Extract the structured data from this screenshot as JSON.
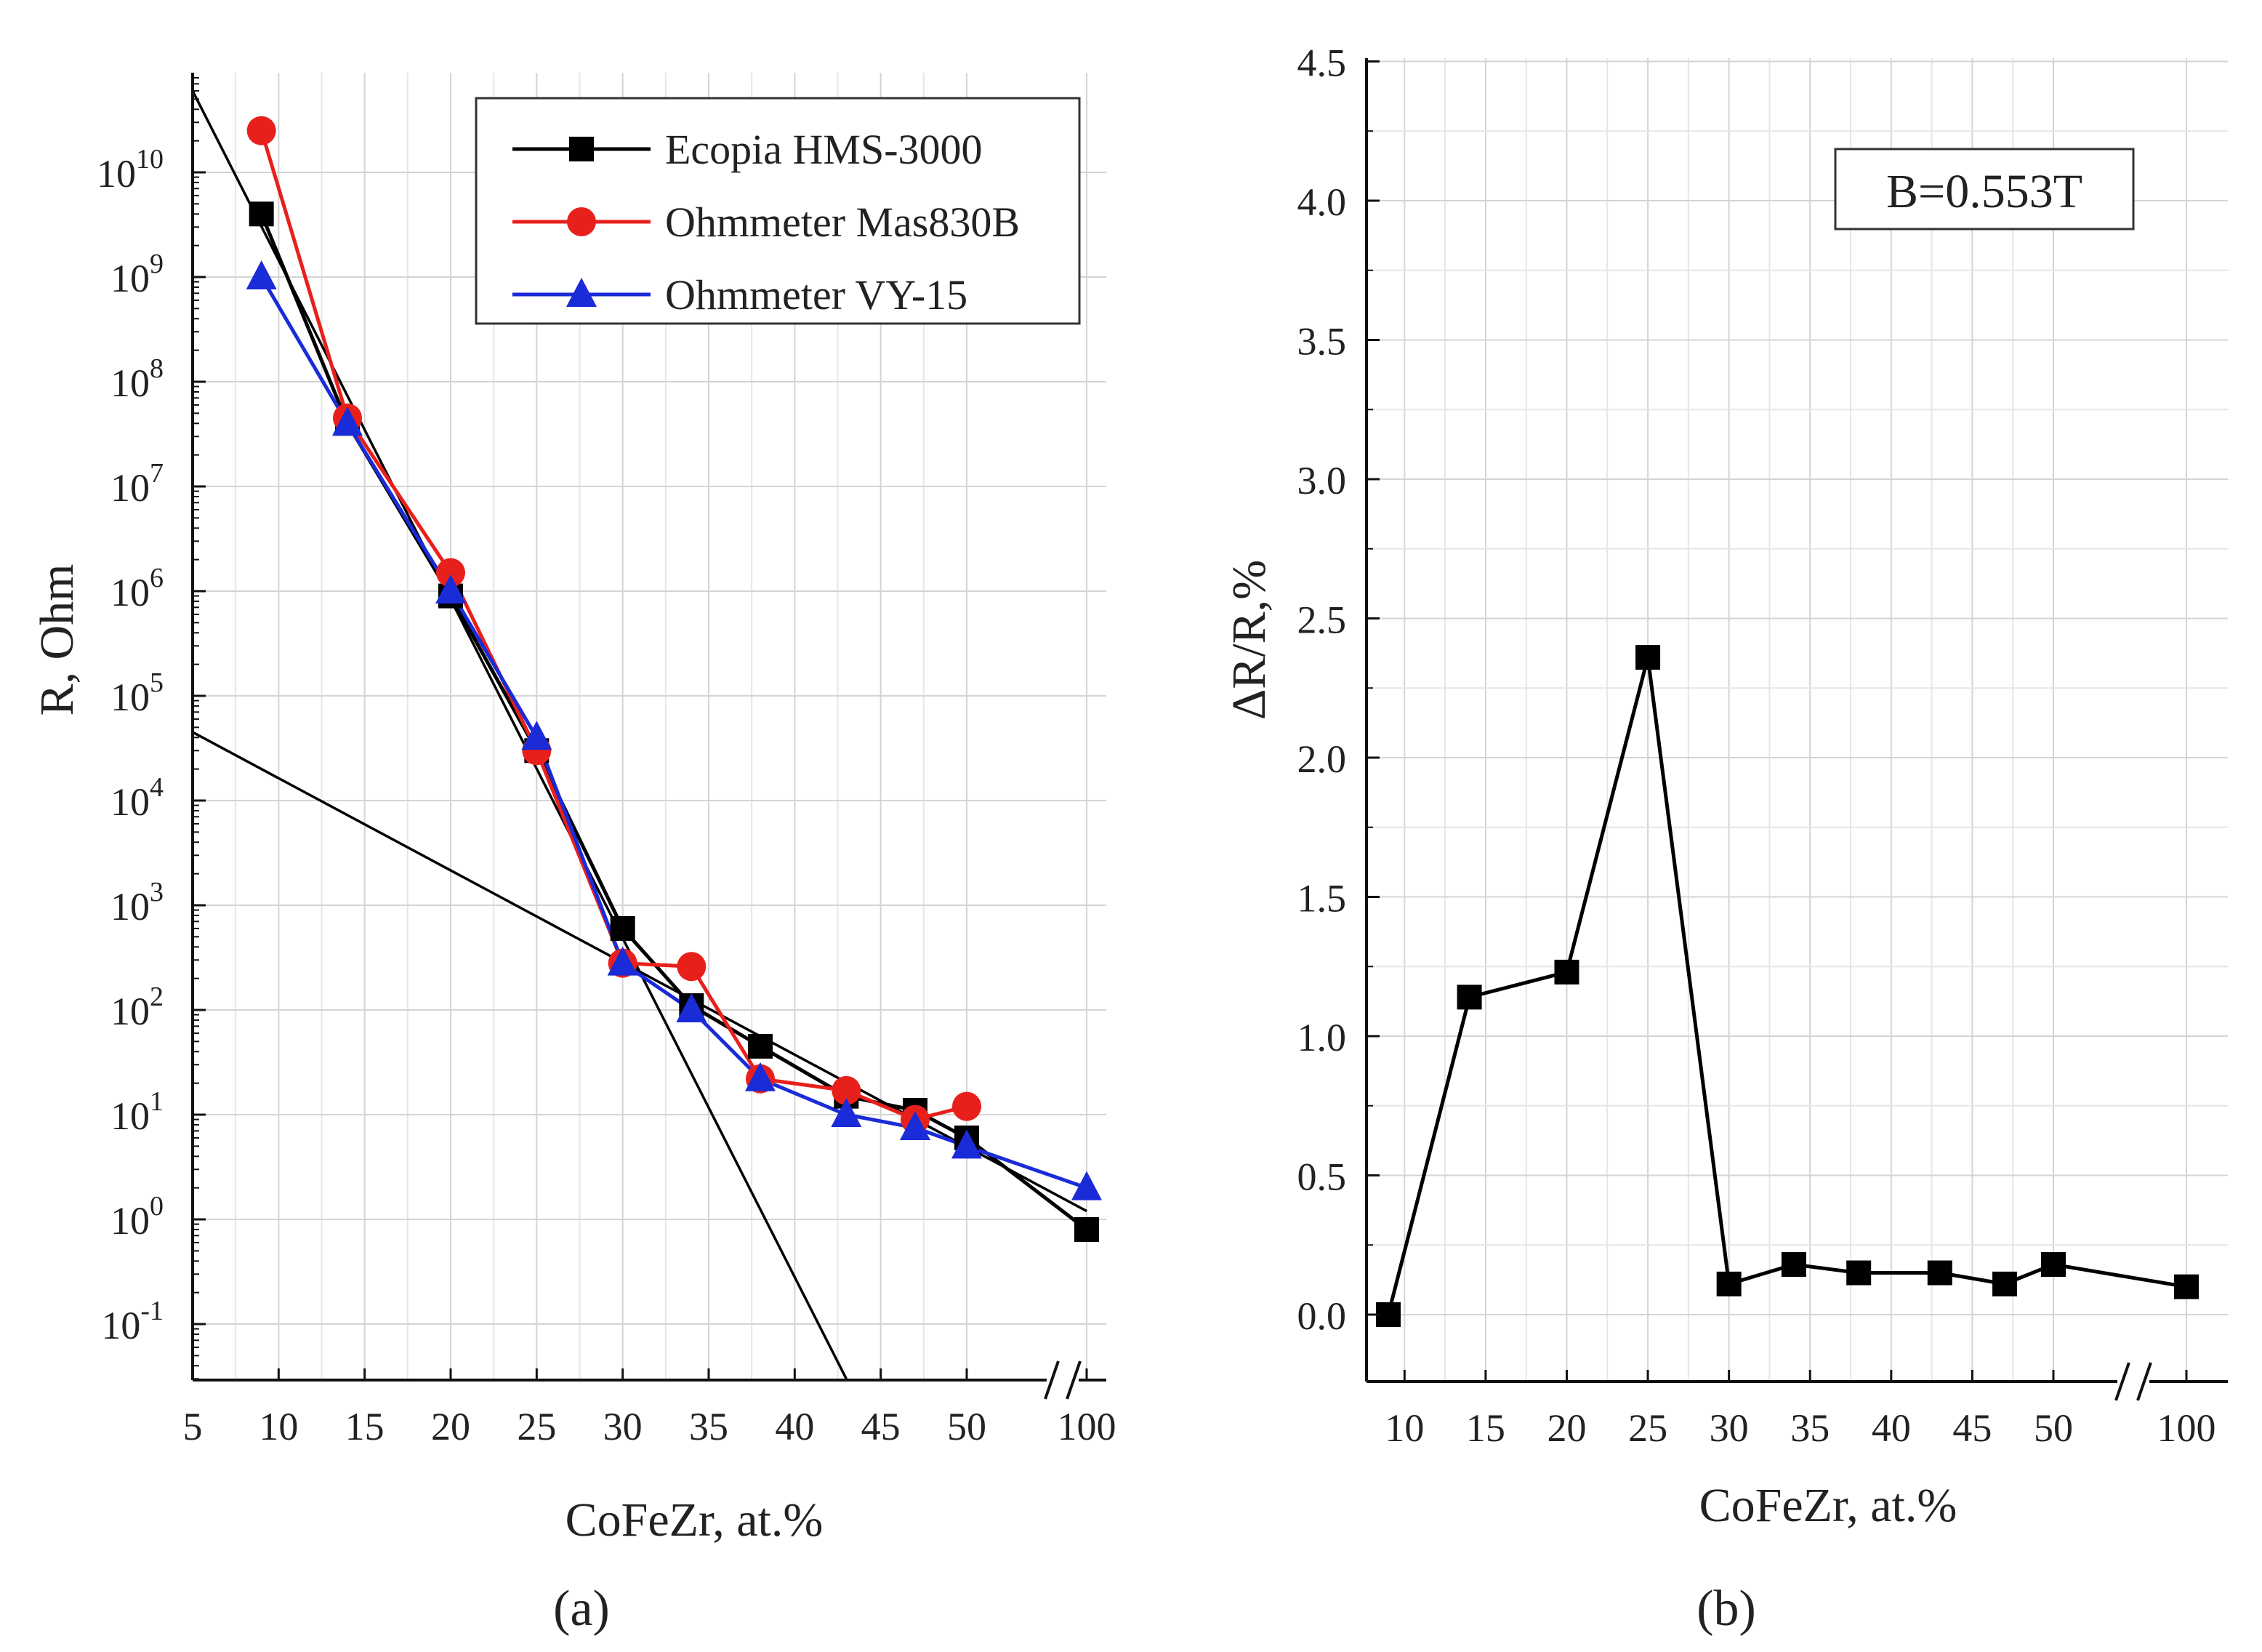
{
  "chart_data": [
    {
      "panel": "(a)",
      "type": "line",
      "xlabel": "CoFeZr, at.%",
      "ylabel": "R, Ohm",
      "yscale": "log",
      "ylim": [
        0.03,
        100000000000.0
      ],
      "x_ticks": [
        "5",
        "10",
        "15",
        "20",
        "25",
        "30",
        "35",
        "40",
        "45",
        "50",
        "100"
      ],
      "y_ticks": [
        {
          "base": "10",
          "exp": "10",
          "value": 10000000000.0
        },
        {
          "base": "10",
          "exp": "9",
          "value": 1000000000.0
        },
        {
          "base": "10",
          "exp": "8",
          "value": 100000000.0
        },
        {
          "base": "10",
          "exp": "7",
          "value": 10000000.0
        },
        {
          "base": "10",
          "exp": "6",
          "value": 1000000.0
        },
        {
          "base": "10",
          "exp": "5",
          "value": 100000.0
        },
        {
          "base": "10",
          "exp": "4",
          "value": 10000.0
        },
        {
          "base": "10",
          "exp": "3",
          "value": 1000.0
        },
        {
          "base": "10",
          "exp": "2",
          "value": 100.0
        },
        {
          "base": "10",
          "exp": "1",
          "value": 10.0
        },
        {
          "base": "10",
          "exp": "0",
          "value": 1
        },
        {
          "base": "10",
          "exp": "-1",
          "value": 0.1
        }
      ],
      "axis_break": "between 50 and 100",
      "grid": true,
      "legend_position": "top-right",
      "series": [
        {
          "name": "Ecopia HMS-3000",
          "color": "#000000",
          "marker": "square",
          "x": [
            9,
            14,
            20,
            25,
            30,
            34,
            38,
            43,
            47,
            50,
            100
          ],
          "y": [
            4000000000.0,
            40000000.0,
            900000.0,
            30000.0,
            600,
            110,
            45,
            15,
            11,
            6,
            0.8
          ]
        },
        {
          "name": "Ohmmeter Mas830B",
          "color": "#e8201c",
          "marker": "circle",
          "x": [
            9,
            14,
            20,
            25,
            30,
            34,
            38,
            43,
            47,
            50
          ],
          "y": [
            25000000000.0,
            45000000.0,
            1500000.0,
            30000.0,
            280,
            260,
            22,
            17,
            9,
            12
          ]
        },
        {
          "name": "Ohmmeter VY-15",
          "color": "#1a2bd8",
          "marker": "triangle",
          "x": [
            9,
            14,
            20,
            25,
            30,
            34,
            38,
            43,
            47,
            50,
            100
          ],
          "y": [
            1000000000.0,
            40000000.0,
            1000000.0,
            40000.0,
            280,
            100,
            22,
            10,
            7.5,
            5,
            2
          ]
        }
      ],
      "fit_lines": [
        {
          "color": "#000000",
          "x": [
            5,
            43
          ],
          "y": [
            60000000000.0,
            0.03
          ]
        },
        {
          "color": "#000000",
          "x": [
            5,
            100
          ],
          "y": [
            45000.0,
            1.2
          ]
        }
      ]
    },
    {
      "panel": "(b)",
      "type": "line",
      "xlabel": "CoFeZr, at.%",
      "ylabel": "ΔR/R,%",
      "ylim": [
        -0.25,
        4.5
      ],
      "x_ticks": [
        "10",
        "15",
        "20",
        "25",
        "30",
        "35",
        "40",
        "45",
        "50",
        "100"
      ],
      "y_ticks": [
        "0.0",
        "0.5",
        "1.0",
        "1.5",
        "2.0",
        "2.5",
        "3.0",
        "3.5",
        "4.0",
        "4.5"
      ],
      "axis_break": "between 50 and 100",
      "grid": true,
      "annotation": "B=0.553T",
      "series": [
        {
          "color": "#000000",
          "marker": "square",
          "x": [
            9,
            14,
            20,
            25,
            30,
            34,
            38,
            43,
            47,
            50,
            100
          ],
          "y": [
            0.0,
            1.14,
            1.23,
            2.36,
            0.11,
            0.18,
            0.15,
            0.15,
            0.11,
            0.18,
            0.1
          ]
        }
      ]
    }
  ]
}
